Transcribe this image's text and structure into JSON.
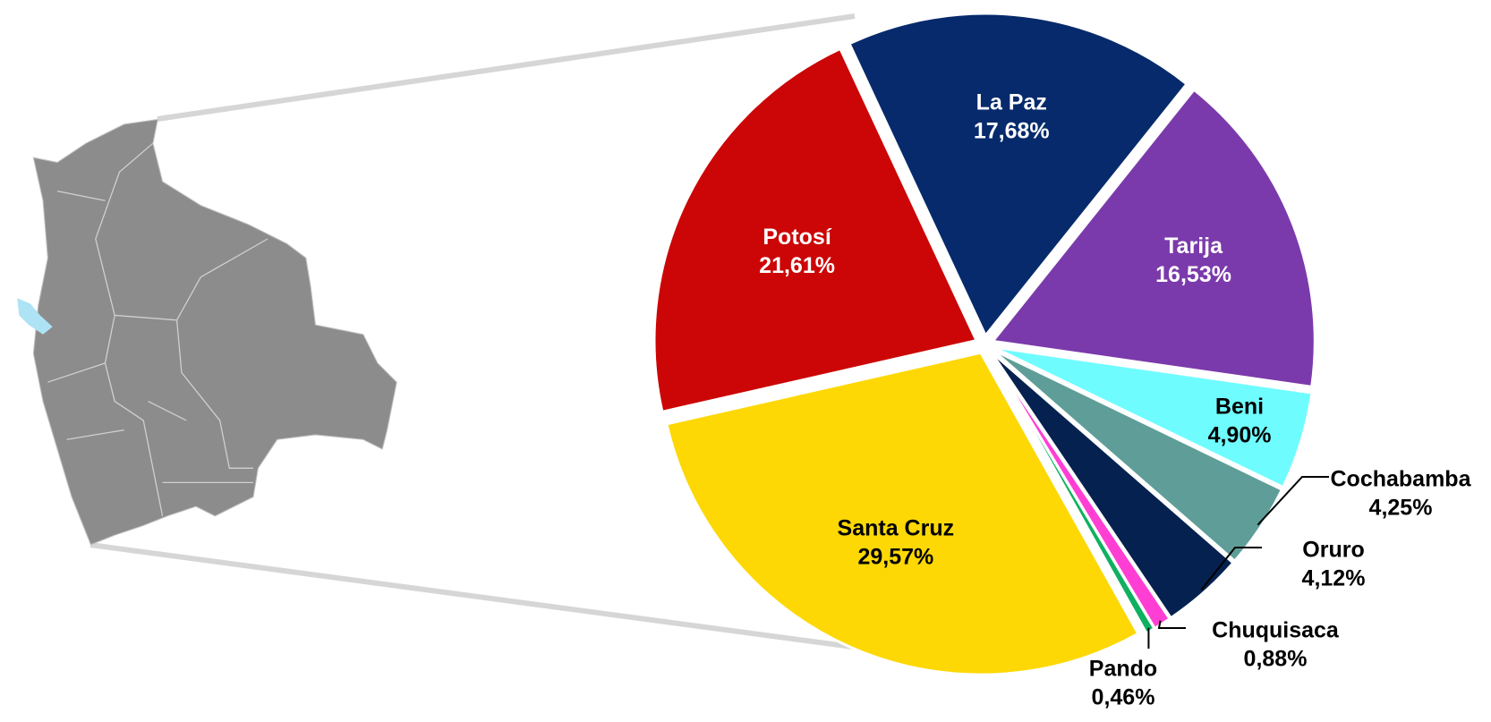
{
  "chart_data": {
    "type": "pie",
    "categories": [
      "La Paz",
      "Tarija",
      "Beni",
      "Cochabamba",
      "Oruro",
      "Chuquisaca",
      "Pando",
      "Santa Cruz",
      "Potosí"
    ],
    "values": [
      17.68,
      16.53,
      4.9,
      4.25,
      4.12,
      0.88,
      0.46,
      29.57,
      21.61
    ],
    "value_labels": [
      "17,68%",
      "16,53%",
      "4,90%",
      "4,25%",
      "4,12%",
      "0,88%",
      "0,46%",
      "29,57%",
      "21,61%"
    ],
    "colors": [
      "#062a6b",
      "#7b3aab",
      "#6ffcff",
      "#5f9e98",
      "#04214f",
      "#ff3fd4",
      "#10b060",
      "#fdd805",
      "#cc0606"
    ]
  }
}
